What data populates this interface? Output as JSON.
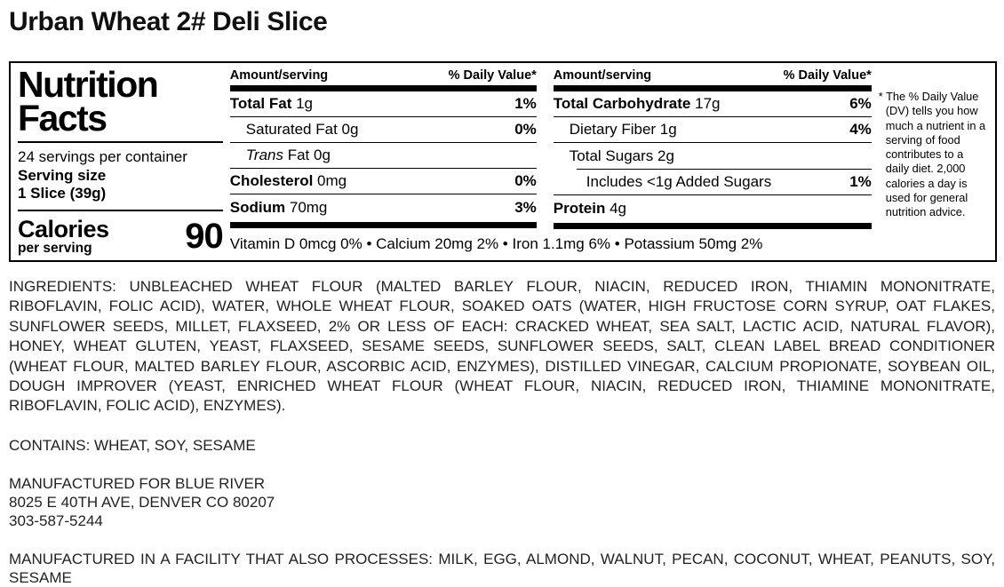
{
  "page": {
    "title": "Urban Wheat 2# Deli Slice"
  },
  "nutrition_facts": {
    "heading_line1": "Nutrition",
    "heading_line2": "Facts",
    "servings_per_container": "24 servings per container",
    "serving_size_label": "Serving size",
    "serving_size_value": "1 Slice (39g)",
    "calories_label": "Calories",
    "calories_sublabel": "per serving",
    "calories_value": "90",
    "mid_header_amount": "Amount/serving",
    "mid_header_dv": "% Daily Value*",
    "right_header_amount": "Amount/serving",
    "right_header_dv": "% Daily Value*",
    "left_rows": [
      {
        "bold": "Total Fat",
        "rest": "1g",
        "dv": "1%"
      },
      {
        "rest": "Saturated Fat 0g",
        "dv": "0%"
      },
      {
        "italic": "Trans",
        "rest": "Fat 0g",
        "dv": ""
      },
      {
        "bold": "Cholesterol",
        "rest": "0mg",
        "dv": "0%"
      },
      {
        "bold": "Sodium",
        "rest": "70mg",
        "dv": "3%"
      }
    ],
    "right_rows": [
      {
        "bold": "Total Carbohydrate",
        "rest": "17g",
        "dv": "6%"
      },
      {
        "rest": "Dietary Fiber 1g",
        "dv": "4%"
      },
      {
        "rest": "Total Sugars 2g",
        "dv": ""
      },
      {
        "rest": "Includes <1g Added Sugars",
        "dv": "1%"
      },
      {
        "bold": "Protein",
        "rest": "4g",
        "dv": ""
      }
    ],
    "micronutrients": "Vitamin D 0mcg 0% • Calcium 20mg 2% • Iron 1.1mg 6% • Potassium 50mg 2%",
    "footnote": "* The % Daily Value (DV) tells you how much a nutrient in a serving of food contributes to a daily diet. 2,000 calories a day is used for general nutrition advice."
  },
  "ingredients": "INGREDIENTS: UNBLEACHED WHEAT FLOUR (MALTED BARLEY FLOUR, NIACIN, REDUCED IRON, THIAMIN MONONITRATE, RIBOFLAVIN, FOLIC ACID), WATER, WHOLE WHEAT FLOUR, SOAKED OATS (WATER, HIGH FRUCTOSE CORN SYRUP, OAT FLAKES, SUNFLOWER SEEDS, MILLET, FLAXSEED, 2% OR LESS OF EACH: CRACKED WHEAT, SEA SALT, LACTIC ACID, NATURAL FLAVOR), HONEY, WHEAT GLUTEN, YEAST, FLAXSEED, SESAME SEEDS, SUNFLOWER SEEDS, SALT, CLEAN LABEL BREAD CONDITIONER (WHEAT FLOUR, MALTED BARLEY FLOUR, ASCORBIC ACID, ENZYMES), DISTILLED VINEGAR, CALCIUM PROPIONATE, SOYBEAN OIL, DOUGH IMPROVER (YEAST, ENRICHED WHEAT FLOUR (WHEAT FLOUR, NIACIN, REDUCED IRON, THIAMINE MONONITRATE, RIBOFLAVIN, FOLIC ACID), ENZYMES).",
  "contains": "CONTAINS: WHEAT, SOY, SESAME",
  "manufacturer": {
    "line1": "MANUFACTURED FOR BLUE RIVER",
    "line2": "8025 E 40TH AVE, DENVER CO 80207",
    "line3": "303-587-5244"
  },
  "facility": "MANUFACTURED IN A FACILITY THAT ALSO PROCESSES: MILK, EGG, ALMOND, WALNUT, PECAN, COCONUT, WHEAT, PEANUTS, SOY, SESAME"
}
